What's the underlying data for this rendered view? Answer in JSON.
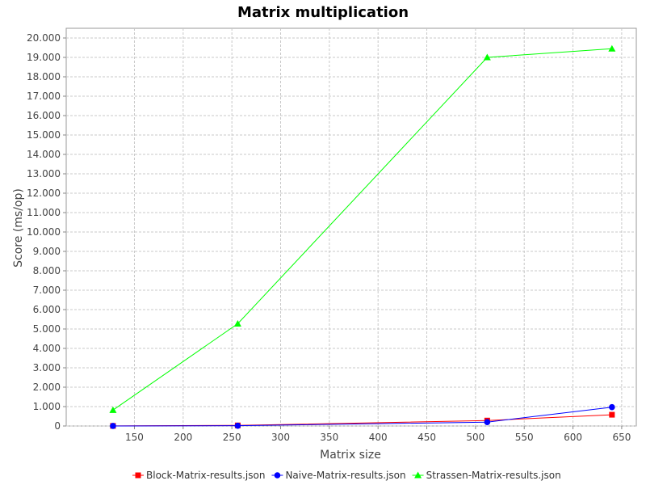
{
  "chart_data": {
    "type": "line",
    "title": "Matrix multiplication",
    "xlabel": "Matrix size",
    "ylabel": "Score (ms/op)",
    "xlim": [
      80,
      665
    ],
    "ylim": [
      0,
      20500
    ],
    "xticks": [
      150,
      200,
      250,
      300,
      350,
      400,
      450,
      500,
      550,
      600,
      650
    ],
    "xtick_labels": [
      "150",
      "200",
      "250",
      "300",
      "350",
      "400",
      "450",
      "500",
      "550",
      "600",
      "650"
    ],
    "yticks": [
      0,
      1000,
      2000,
      3000,
      4000,
      5000,
      6000,
      7000,
      8000,
      9000,
      10000,
      11000,
      12000,
      13000,
      14000,
      15000,
      16000,
      17000,
      18000,
      19000,
      20000
    ],
    "ytick_labels": [
      "0",
      "1.000",
      "2.000",
      "3.000",
      "4.000",
      "5.000",
      "6.000",
      "7.000",
      "8.000",
      "9.000",
      "10.000",
      "11.000",
      "12.000",
      "13.000",
      "14.000",
      "15.000",
      "16.000",
      "17.000",
      "18.000",
      "19.000",
      "20.000"
    ],
    "grid": true,
    "legend_position": "bottom",
    "series": [
      {
        "name": "Block-Matrix-results.json",
        "color": "#ff0000",
        "marker": "square",
        "x": [
          128,
          256,
          512,
          640
        ],
        "y": [
          5,
          30,
          280,
          580
        ]
      },
      {
        "name": "Naive-Matrix-results.json",
        "color": "#0000ff",
        "marker": "circle",
        "x": [
          128,
          256,
          512,
          640
        ],
        "y": [
          2,
          15,
          200,
          970
        ]
      },
      {
        "name": "Strassen-Matrix-results.json",
        "color": "#00ff00",
        "marker": "triangle",
        "x": [
          128,
          256,
          512,
          640
        ],
        "y": [
          820,
          5270,
          19000,
          19450
        ]
      }
    ]
  }
}
